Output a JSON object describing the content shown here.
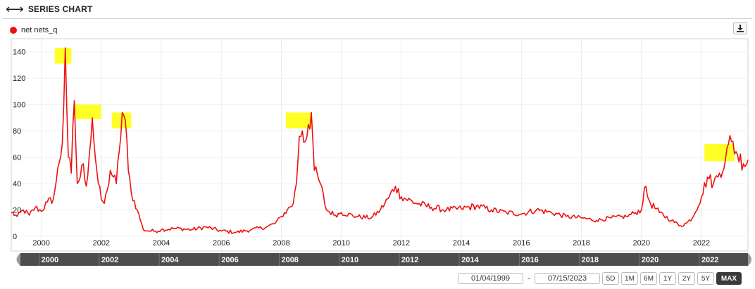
{
  "header": {
    "title": "SERIES CHART",
    "icon": "left-right-arrow-icon"
  },
  "legend": {
    "series_name": "net nets_q",
    "color": "#ee1111"
  },
  "toolbar": {
    "download_icon": "download-icon"
  },
  "controls": {
    "date_from": "01/04/1999",
    "date_separator": "-",
    "date_to": "07/15/2023",
    "ranges": [
      "5D",
      "1M",
      "6M",
      "1Y",
      "2Y",
      "5Y",
      "MAX"
    ],
    "active_range": "MAX"
  },
  "navigator": {
    "labels": [
      "2000",
      "2002",
      "2004",
      "2006",
      "2008",
      "2010",
      "2012",
      "2014",
      "2016",
      "2018",
      "2020",
      "2022"
    ]
  },
  "chart_data": {
    "type": "line",
    "title": "",
    "xlabel": "",
    "ylabel": "",
    "xlim": [
      1999.0,
      2023.55
    ],
    "ylim": [
      0,
      150
    ],
    "x_ticks": [
      "2000",
      "2002",
      "2004",
      "2006",
      "2008",
      "2010",
      "2012",
      "2014",
      "2016",
      "2018",
      "2020",
      "2022"
    ],
    "y_ticks": [
      0,
      20,
      40,
      60,
      80,
      100,
      120,
      140
    ],
    "grid": true,
    "legend_position": "top-left",
    "highlight_color": "#ffff00",
    "highlights": [
      {
        "x": [
          2000.45,
          2001.0
        ],
        "y": [
          131,
          143
        ]
      },
      {
        "x": [
          2001.1,
          2002.0
        ],
        "y": [
          89,
          100
        ]
      },
      {
        "x": [
          2002.35,
          2003.0
        ],
        "y": [
          82,
          94
        ]
      },
      {
        "x": [
          2008.15,
          2009.0
        ],
        "y": [
          82,
          94
        ]
      },
      {
        "x": [
          2022.1,
          2023.1
        ],
        "y": [
          57,
          70
        ]
      }
    ],
    "series": [
      {
        "name": "net nets_q",
        "color": "#ee1111",
        "x": [
          1999.0,
          1999.2,
          1999.4,
          1999.6,
          1999.8,
          2000.0,
          2000.2,
          2000.4,
          2000.5,
          2000.6,
          2000.7,
          2000.8,
          2000.9,
          2001.0,
          2001.1,
          2001.2,
          2001.3,
          2001.4,
          2001.5,
          2001.6,
          2001.7,
          2001.8,
          2001.9,
          2002.0,
          2002.1,
          2002.2,
          2002.3,
          2002.4,
          2002.5,
          2002.6,
          2002.7,
          2002.8,
          2002.9,
          2003.0,
          2003.2,
          2003.4,
          2003.6,
          2003.8,
          2004.0,
          2004.5,
          2005.0,
          2005.5,
          2006.0,
          2006.5,
          2007.0,
          2007.5,
          2007.8,
          2008.0,
          2008.2,
          2008.4,
          2008.5,
          2008.6,
          2008.7,
          2008.8,
          2008.9,
          2009.0,
          2009.1,
          2009.3,
          2009.5,
          2009.8,
          2010.0,
          2010.5,
          2011.0,
          2011.3,
          2011.6,
          2011.8,
          2012.0,
          2012.5,
          2013.0,
          2013.5,
          2014.0,
          2014.5,
          2015.0,
          2015.5,
          2016.0,
          2016.5,
          2017.0,
          2017.5,
          2018.0,
          2018.5,
          2019.0,
          2019.5,
          2019.8,
          2020.0,
          2020.1,
          2020.3,
          2020.6,
          2021.0,
          2021.3,
          2021.5,
          2021.7,
          2022.0,
          2022.2,
          2022.4,
          2022.6,
          2022.8,
          2022.9,
          2023.0,
          2023.2,
          2023.4,
          2023.55
        ],
        "values": [
          18,
          15,
          20,
          16,
          22,
          19,
          26,
          28,
          42,
          56,
          70,
          143,
          60,
          48,
          103,
          40,
          45,
          55,
          38,
          62,
          90,
          60,
          40,
          28,
          25,
          35,
          50,
          45,
          40,
          65,
          94,
          88,
          50,
          33,
          20,
          5,
          4,
          4,
          5,
          6,
          5,
          7,
          4,
          3,
          5,
          7,
          10,
          15,
          20,
          25,
          40,
          76,
          80,
          72,
          85,
          94,
          50,
          40,
          20,
          16,
          18,
          15,
          14,
          20,
          30,
          38,
          30,
          25,
          22,
          20,
          21,
          23,
          20,
          18,
          17,
          20,
          18,
          15,
          14,
          12,
          14,
          15,
          18,
          20,
          37,
          25,
          18,
          12,
          8,
          10,
          14,
          30,
          45,
          40,
          48,
          58,
          70,
          72,
          62,
          55,
          58
        ]
      }
    ]
  }
}
